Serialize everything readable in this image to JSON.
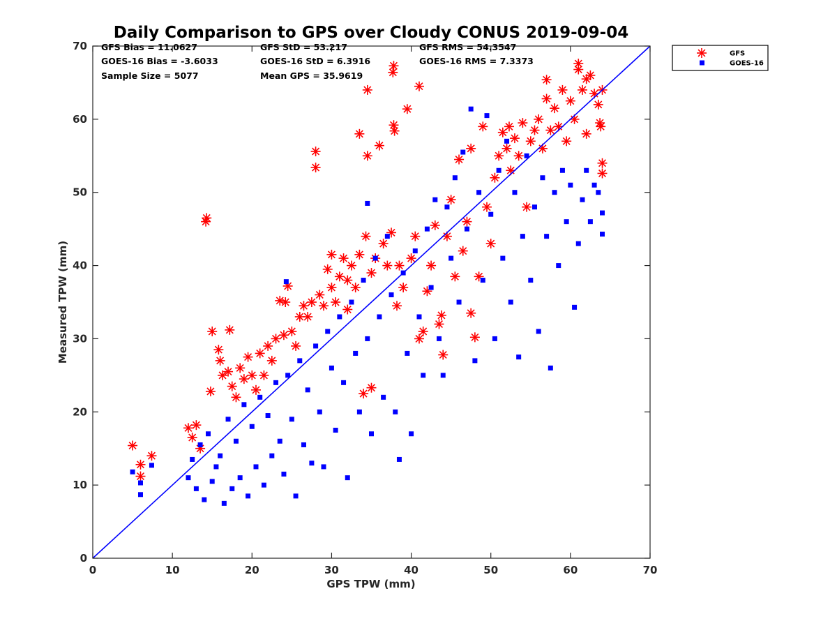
{
  "chart_data": {
    "type": "scatter",
    "title": "Daily Comparison to GPS over Cloudy CONUS 2019-09-04",
    "xlabel": "GPS TPW (mm)",
    "ylabel": "Measured TPW (mm)",
    "xlim": [
      0,
      70
    ],
    "ylim": [
      0,
      70
    ],
    "xticks": [
      0,
      10,
      20,
      30,
      40,
      50,
      60,
      70
    ],
    "yticks": [
      0,
      10,
      20,
      30,
      40,
      50,
      60,
      70
    ],
    "grid": false,
    "legend_position": "outside top-right",
    "stats": [
      [
        "GFS Bias = 11.0627",
        "GFS StD = 53.217",
        "GFS RMS = 54.3547"
      ],
      [
        "GOES-16 Bias = -3.6033",
        "GOES-16 StD = 6.3916",
        "GOES-16 RMS = 7.3373"
      ],
      [
        "Sample Size = 5077",
        "Mean GPS = 35.9619"
      ]
    ],
    "reference_line": {
      "label": "1:1",
      "from": [
        0,
        0
      ],
      "to": [
        70,
        70
      ],
      "color": "#0000ff"
    },
    "series": [
      {
        "name": "GFS",
        "marker": "asterisk",
        "color": "#ff0000",
        "points": [
          [
            5,
            15.4
          ],
          [
            6,
            12.8
          ],
          [
            6,
            11.2
          ],
          [
            7.4,
            14
          ],
          [
            12,
            17.8
          ],
          [
            12.5,
            16.5
          ],
          [
            13,
            18.2
          ],
          [
            13.5,
            15
          ],
          [
            14.3,
            46.5
          ],
          [
            14.2,
            46
          ],
          [
            14.8,
            22.8
          ],
          [
            15,
            31
          ],
          [
            15.8,
            28.5
          ],
          [
            16,
            27
          ],
          [
            16.3,
            25
          ],
          [
            17,
            25.5
          ],
          [
            17.2,
            31.2
          ],
          [
            17.5,
            23.5
          ],
          [
            18,
            22
          ],
          [
            18.5,
            26
          ],
          [
            19,
            24.5
          ],
          [
            19.5,
            27.5
          ],
          [
            20,
            25
          ],
          [
            20.5,
            23
          ],
          [
            21,
            28
          ],
          [
            21.5,
            25
          ],
          [
            22,
            29
          ],
          [
            22.5,
            27
          ],
          [
            23,
            30
          ],
          [
            23.5,
            35.2
          ],
          [
            24,
            30.5
          ],
          [
            24.2,
            35
          ],
          [
            24.5,
            37.2
          ],
          [
            25,
            31
          ],
          [
            25.5,
            29
          ],
          [
            26,
            33
          ],
          [
            26.5,
            34.5
          ],
          [
            27,
            33
          ],
          [
            27.5,
            35
          ],
          [
            28,
            55.6
          ],
          [
            28,
            53.4
          ],
          [
            28.5,
            36
          ],
          [
            29,
            34.5
          ],
          [
            29.5,
            39.5
          ],
          [
            30,
            41.5
          ],
          [
            30,
            37
          ],
          [
            30.5,
            35
          ],
          [
            31,
            38.5
          ],
          [
            31.5,
            41
          ],
          [
            32,
            34
          ],
          [
            32,
            38
          ],
          [
            32.5,
            40
          ],
          [
            33,
            37
          ],
          [
            33.5,
            41.5
          ],
          [
            33.5,
            58
          ],
          [
            34,
            22.5
          ],
          [
            34.3,
            44
          ],
          [
            34.5,
            55
          ],
          [
            34.5,
            64
          ],
          [
            35,
            23.3
          ],
          [
            35,
            39
          ],
          [
            35.5,
            41
          ],
          [
            36,
            56.4
          ],
          [
            36.5,
            43
          ],
          [
            37,
            40
          ],
          [
            37.5,
            44.5
          ],
          [
            37.8,
            67.3
          ],
          [
            37.7,
            66.4
          ],
          [
            37.8,
            59.2
          ],
          [
            37.9,
            58.4
          ],
          [
            38.2,
            34.5
          ],
          [
            38.5,
            40
          ],
          [
            39,
            37
          ],
          [
            39.5,
            61.4
          ],
          [
            40,
            41
          ],
          [
            40.5,
            44
          ],
          [
            41,
            64.5
          ],
          [
            41,
            30
          ],
          [
            41.5,
            31
          ],
          [
            42,
            36.5
          ],
          [
            42.5,
            40
          ],
          [
            43,
            45.5
          ],
          [
            43.5,
            32
          ],
          [
            43.8,
            33.2
          ],
          [
            44,
            27.8
          ],
          [
            44.5,
            44
          ],
          [
            45,
            49
          ],
          [
            45.5,
            38.5
          ],
          [
            46,
            54.5
          ],
          [
            46.5,
            42
          ],
          [
            47,
            46
          ],
          [
            47.5,
            33.5
          ],
          [
            47.5,
            56
          ],
          [
            48,
            30.2
          ],
          [
            48.5,
            38.5
          ],
          [
            49,
            59
          ],
          [
            49.5,
            48
          ],
          [
            50,
            43
          ],
          [
            50.5,
            52
          ],
          [
            51,
            55
          ],
          [
            51.5,
            58.2
          ],
          [
            52,
            56
          ],
          [
            52.3,
            59
          ],
          [
            52.5,
            53
          ],
          [
            53,
            57.4
          ],
          [
            53.5,
            55
          ],
          [
            54,
            59.5
          ],
          [
            54.5,
            48
          ],
          [
            55,
            57
          ],
          [
            55.5,
            58.5
          ],
          [
            56,
            60
          ],
          [
            56.5,
            56
          ],
          [
            57,
            62.8
          ],
          [
            57,
            65.4
          ],
          [
            57.5,
            58.5
          ],
          [
            58,
            61.5
          ],
          [
            58.5,
            59
          ],
          [
            59,
            64
          ],
          [
            59.5,
            57
          ],
          [
            60,
            62.5
          ],
          [
            60.5,
            60
          ],
          [
            61,
            67.6
          ],
          [
            61,
            66.8
          ],
          [
            61.5,
            64
          ],
          [
            62,
            65.5
          ],
          [
            62,
            58
          ],
          [
            62.5,
            66
          ],
          [
            63,
            63.5
          ],
          [
            63.5,
            62
          ],
          [
            63.7,
            59.5
          ],
          [
            63.8,
            59
          ],
          [
            64,
            64
          ],
          [
            64,
            54
          ],
          [
            64,
            52.6
          ]
        ]
      },
      {
        "name": "GOES-16",
        "marker": "square",
        "color": "#0000ff",
        "points": [
          [
            5,
            11.8
          ],
          [
            6,
            10.3
          ],
          [
            6,
            8.7
          ],
          [
            7.4,
            12.7
          ],
          [
            12,
            11
          ],
          [
            12.5,
            13.5
          ],
          [
            13,
            9.5
          ],
          [
            13.5,
            15.5
          ],
          [
            14,
            8
          ],
          [
            14.5,
            17
          ],
          [
            15,
            10.5
          ],
          [
            15.5,
            12.5
          ],
          [
            16,
            14
          ],
          [
            16.5,
            7.5
          ],
          [
            17,
            19
          ],
          [
            17.5,
            9.5
          ],
          [
            18,
            16
          ],
          [
            18.5,
            11
          ],
          [
            19,
            21
          ],
          [
            19.5,
            8.5
          ],
          [
            20,
            18
          ],
          [
            20.5,
            12.5
          ],
          [
            21,
            22
          ],
          [
            21.5,
            10
          ],
          [
            22,
            19.5
          ],
          [
            22.5,
            14
          ],
          [
            23,
            24
          ],
          [
            23.5,
            16
          ],
          [
            24,
            11.5
          ],
          [
            24.3,
            37.8
          ],
          [
            24.5,
            25
          ],
          [
            25,
            19
          ],
          [
            25.5,
            8.5
          ],
          [
            26,
            27
          ],
          [
            26.5,
            15.5
          ],
          [
            27,
            23
          ],
          [
            27.5,
            13
          ],
          [
            28,
            29
          ],
          [
            28.5,
            20
          ],
          [
            29,
            12.5
          ],
          [
            29.5,
            31
          ],
          [
            30,
            26
          ],
          [
            30.5,
            17.5
          ],
          [
            31,
            33
          ],
          [
            31.5,
            24
          ],
          [
            32,
            11
          ],
          [
            32.5,
            35
          ],
          [
            33,
            28
          ],
          [
            33.5,
            20
          ],
          [
            34,
            38
          ],
          [
            34.5,
            48.5
          ],
          [
            34.5,
            30
          ],
          [
            35,
            17
          ],
          [
            35.5,
            41
          ],
          [
            36,
            33
          ],
          [
            36.5,
            22
          ],
          [
            37,
            44
          ],
          [
            37.5,
            36
          ],
          [
            38,
            20
          ],
          [
            38.5,
            13.5
          ],
          [
            39,
            39
          ],
          [
            39.5,
            28
          ],
          [
            40,
            17
          ],
          [
            40.5,
            42
          ],
          [
            41,
            33
          ],
          [
            41.5,
            25
          ],
          [
            42,
            45
          ],
          [
            42.5,
            37
          ],
          [
            43,
            49
          ],
          [
            43.5,
            30
          ],
          [
            44,
            25
          ],
          [
            44.5,
            48
          ],
          [
            45,
            41
          ],
          [
            45.5,
            52
          ],
          [
            46,
            35
          ],
          [
            46.5,
            55.5
          ],
          [
            47,
            45
          ],
          [
            47.5,
            61.4
          ],
          [
            48,
            27
          ],
          [
            48.5,
            50
          ],
          [
            49,
            38
          ],
          [
            49.5,
            60.5
          ],
          [
            50,
            47
          ],
          [
            50.5,
            30
          ],
          [
            51,
            53
          ],
          [
            51.5,
            41
          ],
          [
            52,
            57
          ],
          [
            52.5,
            35
          ],
          [
            53,
            50
          ],
          [
            53.5,
            27.5
          ],
          [
            54,
            44
          ],
          [
            54.5,
            55
          ],
          [
            55,
            38
          ],
          [
            55.5,
            48
          ],
          [
            56,
            31
          ],
          [
            56.5,
            52
          ],
          [
            57,
            44
          ],
          [
            57.5,
            26
          ],
          [
            58,
            50
          ],
          [
            58.5,
            40
          ],
          [
            59,
            53
          ],
          [
            59.5,
            46
          ],
          [
            60,
            51
          ],
          [
            60.5,
            34.3
          ],
          [
            61,
            43
          ],
          [
            61.5,
            49
          ],
          [
            62,
            53
          ],
          [
            62.5,
            46
          ],
          [
            63,
            51
          ],
          [
            63.5,
            50
          ],
          [
            64,
            47.2
          ],
          [
            64,
            44.3
          ]
        ]
      }
    ]
  }
}
